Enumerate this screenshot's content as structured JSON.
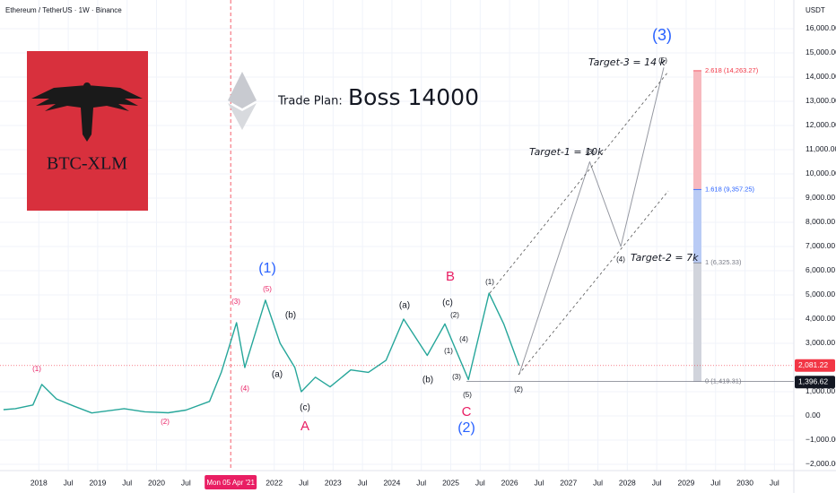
{
  "header": {
    "title": "Ethereum / TetherUS · 1W · Binance",
    "currency": "USDT"
  },
  "logo": {
    "text": "BTC-XLM"
  },
  "plan": {
    "label": "Trade Plan:",
    "target": "Boss 14000"
  },
  "chart_data": {
    "type": "line",
    "xlim": [
      2017.34,
      2030.83
    ],
    "ylim": [
      -2260,
      17185
    ],
    "grid": true,
    "xticks": [
      {
        "value": 2018,
        "label": "2018"
      },
      {
        "value": 2018.5,
        "label": "Jul"
      },
      {
        "value": 2019,
        "label": "2019"
      },
      {
        "value": 2019.5,
        "label": "Jul"
      },
      {
        "value": 2020,
        "label": "2020"
      },
      {
        "value": 2020.5,
        "label": "Jul"
      },
      {
        "value": 2021.26,
        "label": "Mon 05 Apr '21"
      },
      {
        "value": 2022,
        "label": "2022"
      },
      {
        "value": 2022.5,
        "label": "Jul"
      },
      {
        "value": 2023,
        "label": "2023"
      },
      {
        "value": 2023.5,
        "label": "Jul"
      },
      {
        "value": 2024,
        "label": "2024"
      },
      {
        "value": 2024.5,
        "label": "Jul"
      },
      {
        "value": 2025,
        "label": "2025"
      },
      {
        "value": 2025.5,
        "label": "Jul"
      },
      {
        "value": 2026,
        "label": "2026"
      },
      {
        "value": 2026.5,
        "label": "Jul"
      },
      {
        "value": 2027,
        "label": "2027"
      },
      {
        "value": 2027.5,
        "label": "Jul"
      },
      {
        "value": 2028,
        "label": "2028"
      },
      {
        "value": 2028.5,
        "label": "Jul"
      },
      {
        "value": 2029,
        "label": "2029"
      },
      {
        "value": 2029.5,
        "label": "Jul"
      },
      {
        "value": 2030,
        "label": "2030"
      },
      {
        "value": 2030.5,
        "label": "Jul"
      }
    ],
    "crosshair": 2021.26,
    "yticks": [
      {
        "value": 16000,
        "label": "16,000.00"
      },
      {
        "value": 15000,
        "label": "15,000.00"
      },
      {
        "value": 14000,
        "label": "14,000.00"
      },
      {
        "value": 13000,
        "label": "13,000.00"
      },
      {
        "value": 12000,
        "label": "12,000.00"
      },
      {
        "value": 11000,
        "label": "11,000.00"
      },
      {
        "value": 10000,
        "label": "10,000.00"
      },
      {
        "value": 9000,
        "label": "9,000.00"
      },
      {
        "value": 8000,
        "label": "8,000.00"
      },
      {
        "value": 7000,
        "label": "7,000.00"
      },
      {
        "value": 6000,
        "label": "6,000.00"
      },
      {
        "value": 5000,
        "label": "5,000.00"
      },
      {
        "value": 4000,
        "label": "4,000.00"
      },
      {
        "value": 3000,
        "label": "3,000.00"
      },
      {
        "value": 1000,
        "label": "1,000.00"
      },
      {
        "value": 0,
        "label": "0.00"
      },
      {
        "value": -1000,
        "label": "−1,000.00"
      },
      {
        "value": -2000,
        "label": "−2,000.00"
      }
    ],
    "series": [
      {
        "name": "Price",
        "color": "#26a69a",
        "x": [
          2017.4,
          2017.6,
          2017.9,
          2018.05,
          2018.3,
          2018.6,
          2018.9,
          2019.45,
          2019.8,
          2020.2,
          2020.5,
          2020.9,
          2021.1,
          2021.36,
          2021.5,
          2021.85,
          2022.1,
          2022.35,
          2022.46,
          2022.7,
          2022.95,
          2023.3,
          2023.6,
          2023.9,
          2024.2,
          2024.6,
          2024.9,
          2025.3,
          2025.65,
          2025.9,
          2026.16
        ],
        "values": [
          260,
          300,
          450,
          1300,
          700,
          400,
          120,
          300,
          170,
          130,
          240,
          600,
          1800,
          3850,
          2000,
          4780,
          3000,
          2000,
          1000,
          1600,
          1200,
          1900,
          1800,
          2300,
          4000,
          2500,
          3800,
          1500,
          5070,
          3800,
          2081
        ]
      },
      {
        "name": "Projection",
        "color": "#9598a1",
        "x": [
          2026.16,
          2027.36,
          2027.89,
          2028.62
        ],
        "values": [
          1700,
          10500,
          7000,
          14400
        ]
      }
    ],
    "fib_levels": [
      {
        "label": "0 (1,419.31)",
        "value": 1419.31,
        "color": "#787b86",
        "band_color": "#d1d4dc"
      },
      {
        "label": "1 (6,325.33)",
        "value": 6325.33,
        "color": "#787b86",
        "band_color": "#b9cbf5"
      },
      {
        "label": "1.618 (9,357.25)",
        "value": 9357.25,
        "color": "#2962ff",
        "band_color": "#f7b9be"
      },
      {
        "label": "2.618 (14,263.27)",
        "value": 14263.27,
        "color": "#f23645"
      }
    ],
    "price_tags": [
      {
        "label": "2,081.22",
        "value": 2081.22,
        "color": "#f23645"
      },
      {
        "label": "1,396.62",
        "value": 1396.62,
        "color": "#131722"
      }
    ]
  },
  "annotations": [
    "(1)",
    "(1)",
    "(2)",
    "(3)",
    "(4)",
    "(5)",
    "(b)",
    "(a)",
    "(c)",
    "A",
    "(a)",
    "(b)",
    "(c)",
    "(2)",
    "(4)",
    "(1)",
    "(3)",
    "(5)",
    "B",
    "C",
    "(2)",
    "(1)",
    "(2)",
    "(3)",
    "(4)",
    "(5)",
    "(3)",
    "Target-1 = 10k",
    "Target-2 = 7k",
    "Target-3 = 14 k"
  ]
}
